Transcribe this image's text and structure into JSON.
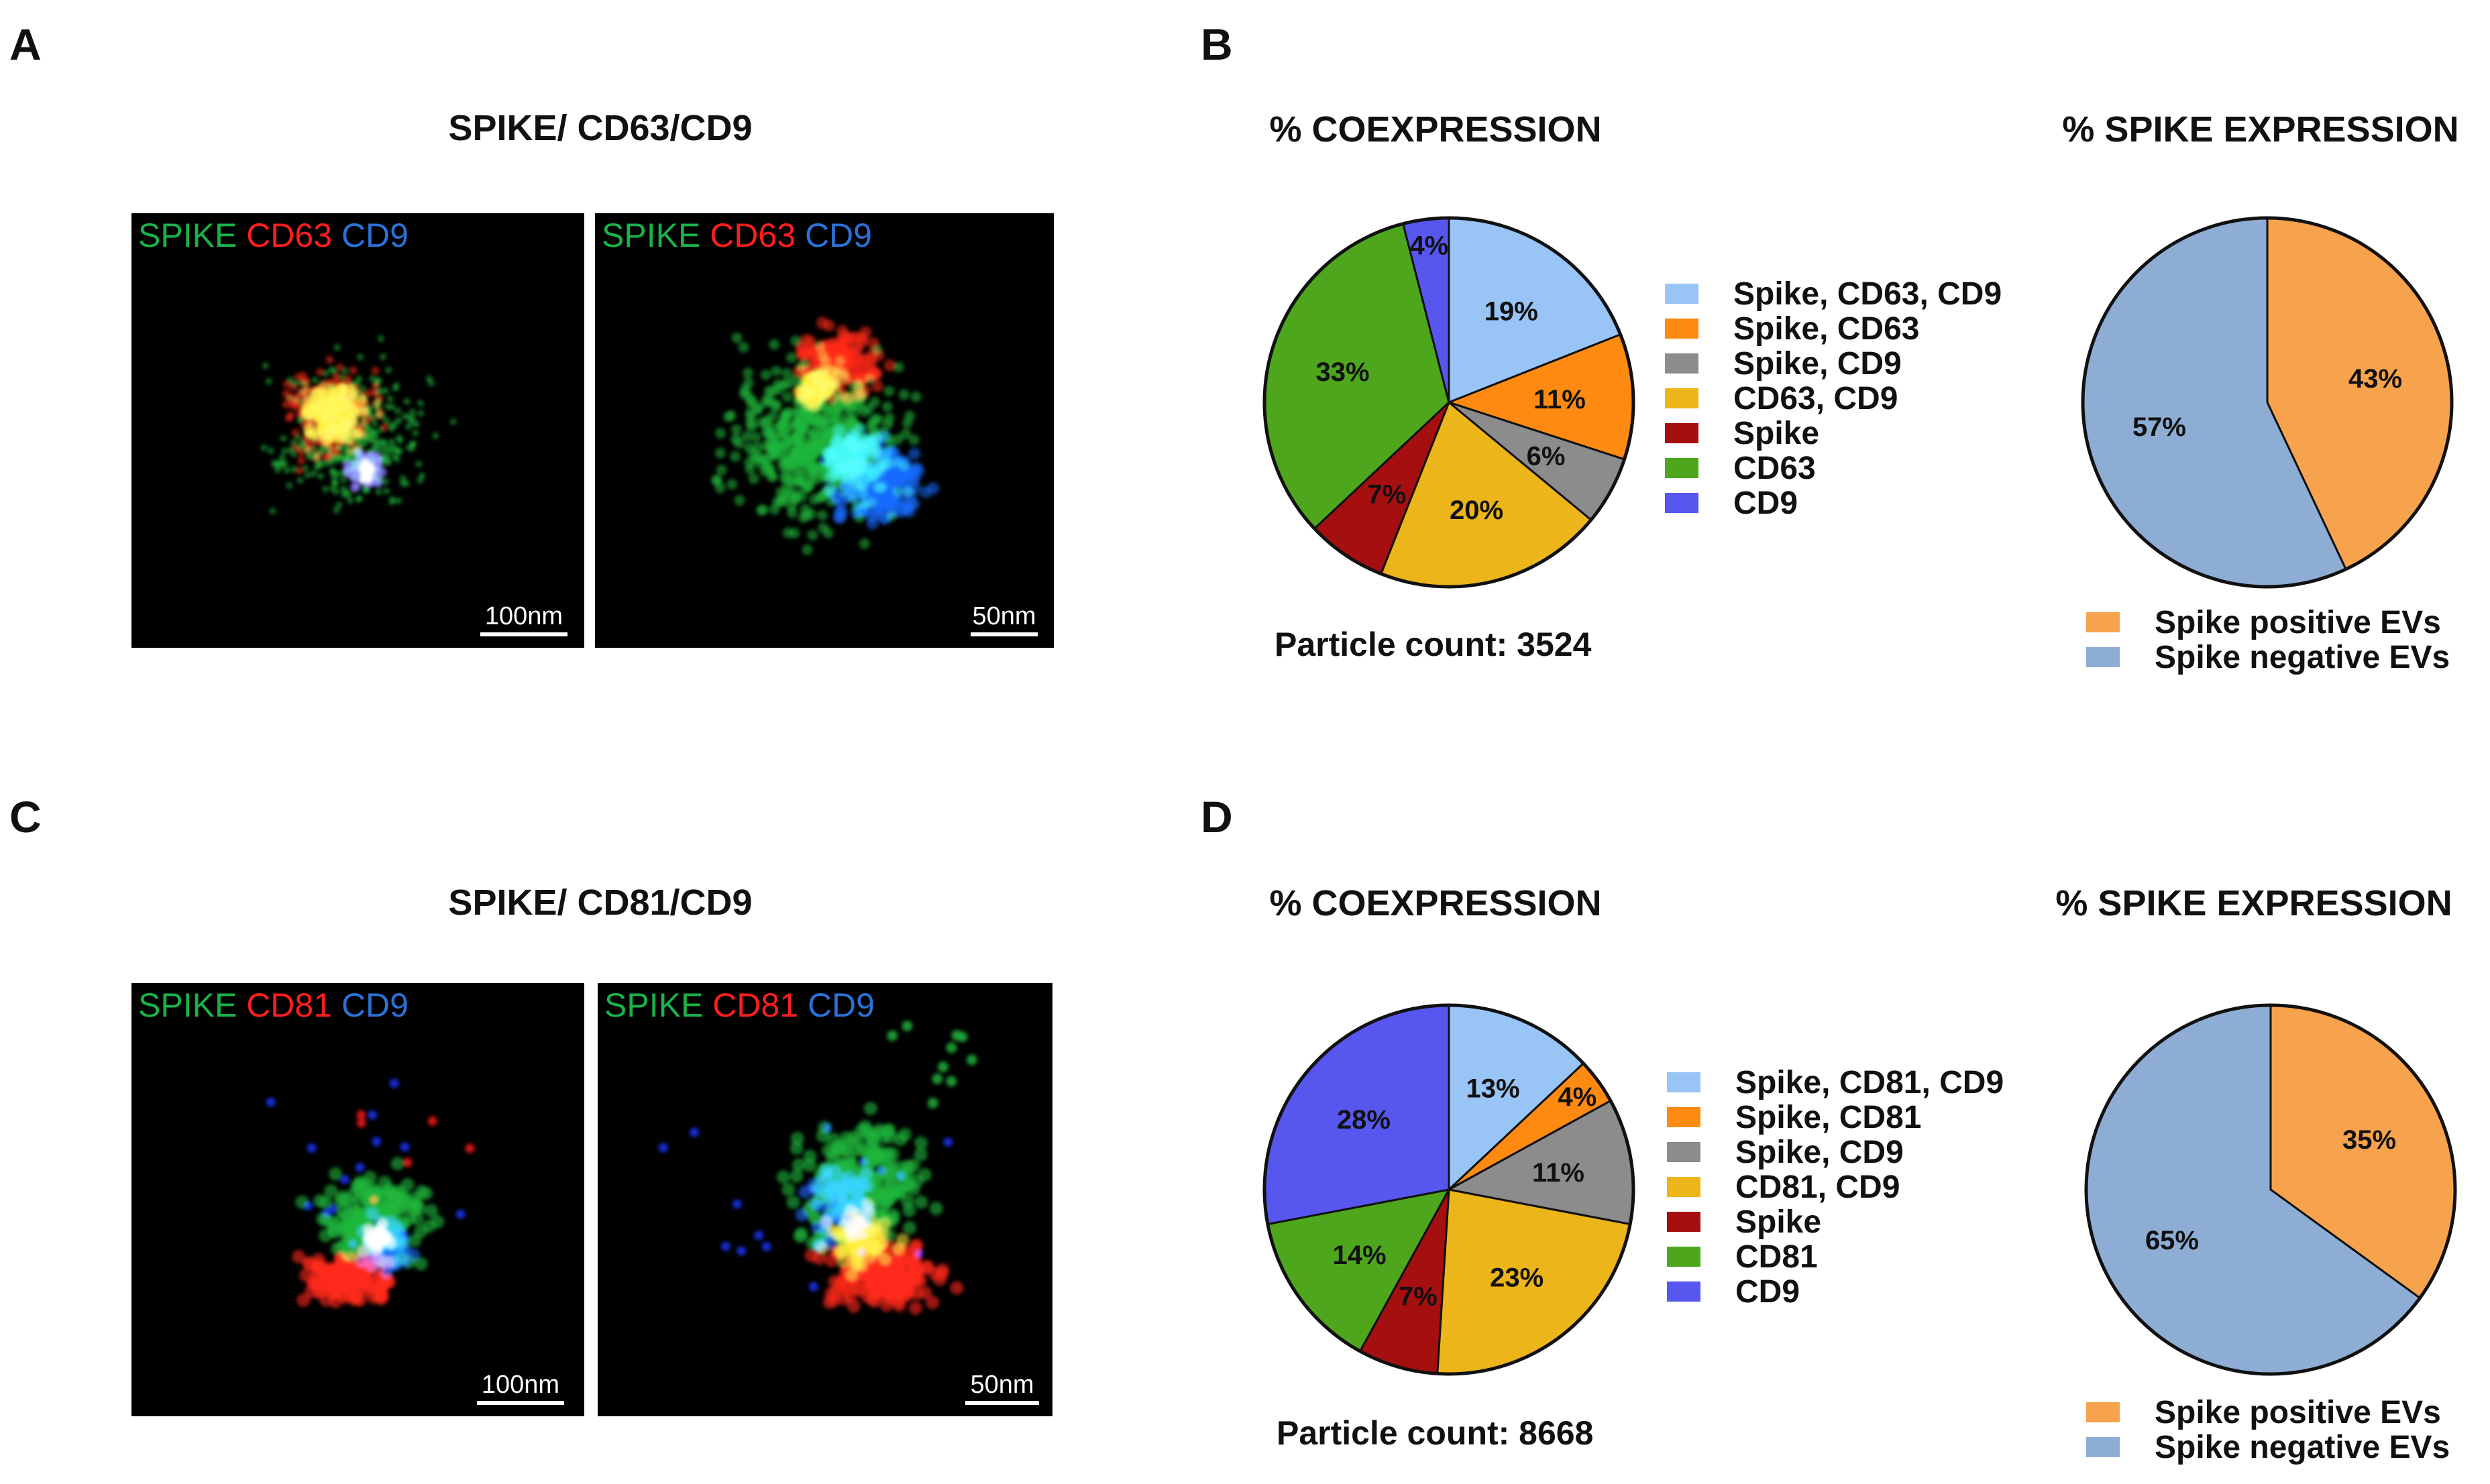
{
  "panels": {
    "a": {
      "letter": "A",
      "title": "SPIKE/ CD63/CD9"
    },
    "b": {
      "letter": "B"
    },
    "c": {
      "letter": "C",
      "title": "SPIKE/ CD81/CD9"
    },
    "d": {
      "letter": "D"
    }
  },
  "microscopy": {
    "a_left": {
      "channels": [
        "SPIKE",
        "CD63",
        "CD9"
      ],
      "scale": "100nm"
    },
    "a_right": {
      "channels": [
        "SPIKE",
        "CD63",
        "CD9"
      ],
      "scale": "50nm"
    },
    "c_left": {
      "channels": [
        "SPIKE",
        "CD81",
        "CD9"
      ],
      "scale": "100nm"
    },
    "c_right": {
      "channels": [
        "SPIKE",
        "CD81",
        "CD9"
      ],
      "scale": "50nm"
    }
  },
  "colors": {
    "light_blue": "#99c4f6",
    "orange": "#ff8a12",
    "gray": "#8c8c8c",
    "gold": "#ecb51a",
    "dark_red": "#a50f0f",
    "green": "#4ea61d",
    "blue": "#5757f0",
    "spike_pos": "#f7a24d",
    "spike_neg": "#8eadd5"
  },
  "chart_data": [
    {
      "id": "b_coexpression",
      "type": "pie",
      "title": "% COEXPRESSION",
      "categories": [
        "Spike, CD63, CD9",
        "Spike, CD63",
        "Spike, CD9",
        "CD63, CD9",
        "Spike",
        "CD63",
        "CD9"
      ],
      "values": [
        19,
        11,
        6,
        20,
        7,
        33,
        4
      ],
      "labels": [
        "19%",
        "11%",
        "6%",
        "20%",
        "7%",
        "33%",
        "4%"
      ],
      "colors": [
        "#99c4f6",
        "#ff8a12",
        "#8c8c8c",
        "#ecb51a",
        "#a50f0f",
        "#4ea61d",
        "#5757f0"
      ],
      "footer": "Particle count: 3524"
    },
    {
      "id": "b_spike",
      "type": "pie",
      "title": "% SPIKE EXPRESSION",
      "categories": [
        "Spike positive EVs",
        "Spike negative EVs"
      ],
      "values": [
        43,
        57
      ],
      "labels": [
        "43%",
        "57%"
      ],
      "colors": [
        "#f7a24d",
        "#8eadd5"
      ]
    },
    {
      "id": "d_coexpression",
      "type": "pie",
      "title": "% COEXPRESSION",
      "categories": [
        "Spike, CD81, CD9",
        "Spike, CD81",
        "Spike, CD9",
        "CD81, CD9",
        "Spike",
        "CD81",
        "CD9"
      ],
      "values": [
        13,
        4,
        11,
        23,
        7,
        14,
        28
      ],
      "labels": [
        "13%",
        "4%",
        "11%",
        "23%",
        "7%",
        "14%",
        "28%"
      ],
      "colors": [
        "#99c4f6",
        "#ff8a12",
        "#8c8c8c",
        "#ecb51a",
        "#a50f0f",
        "#4ea61d",
        "#5757f0"
      ],
      "footer": "Particle count: 8668"
    },
    {
      "id": "d_spike",
      "type": "pie",
      "title": "% SPIKE EXPRESSION",
      "categories": [
        "Spike positive EVs",
        "Spike negative EVs"
      ],
      "values": [
        35,
        65
      ],
      "labels": [
        "35%",
        "65%"
      ],
      "colors": [
        "#f7a24d",
        "#8eadd5"
      ]
    }
  ]
}
